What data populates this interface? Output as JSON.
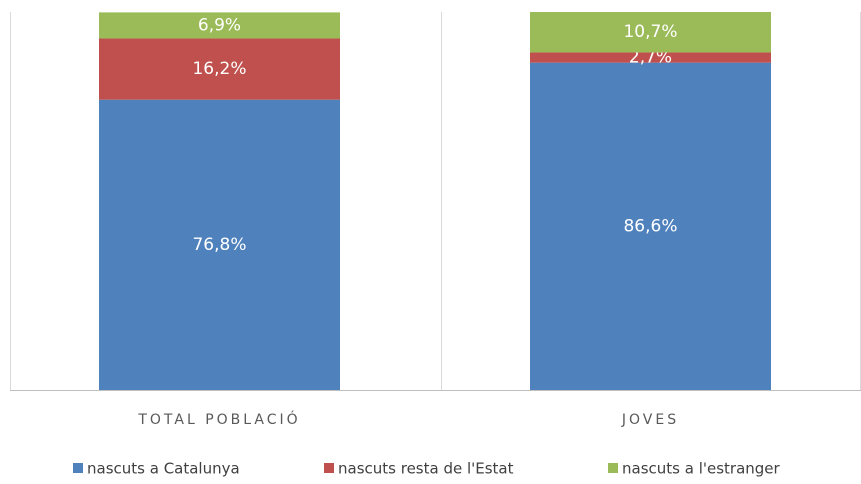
{
  "chart_data": {
    "type": "bar",
    "stacked": true,
    "categories": [
      "TOTAL POBLACIÓ",
      "JOVES"
    ],
    "series": [
      {
        "name": "nascuts a Catalunya",
        "color": "#4f81bd",
        "values": [
          76.8,
          86.6
        ],
        "value_labels": [
          "76,8%",
          "86,6%"
        ]
      },
      {
        "name": "nascuts resta de l'Estat",
        "color": "#c0504d",
        "values": [
          16.2,
          2.7
        ],
        "value_labels": [
          "16,2%",
          "2,7%"
        ]
      },
      {
        "name": "nascuts a l'estranger",
        "color": "#9bbb59",
        "values": [
          6.9,
          10.7
        ],
        "value_labels": [
          "6,9%",
          "10,7%"
        ]
      }
    ],
    "ylim": [
      0,
      100
    ],
    "legend": "bottom"
  }
}
